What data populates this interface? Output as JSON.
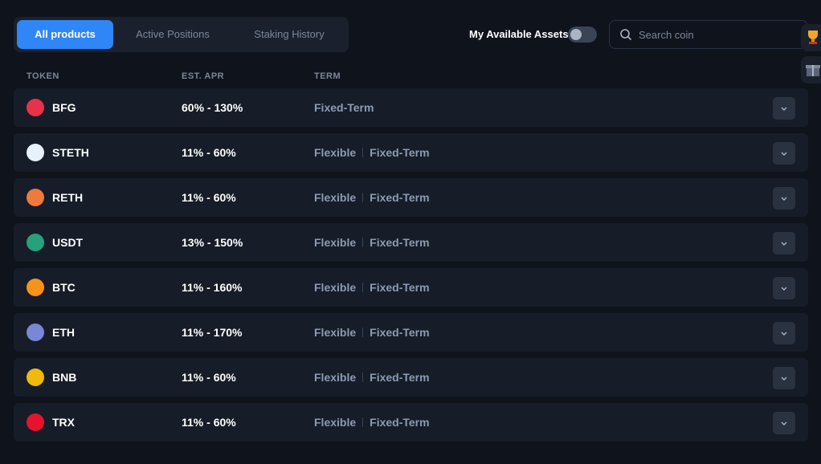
{
  "tabs": [
    "All products",
    "Active Positions",
    "Staking History"
  ],
  "toggle_label": "My Available Assets",
  "search_placeholder": "Search coin",
  "table": {
    "headers": [
      "TOKEN",
      "EST. APR",
      "TERM"
    ],
    "rows": [
      {
        "token": "BFG",
        "apr": "60% - 130%",
        "terms": [
          "Fixed-Term"
        ]
      },
      {
        "token": "STETH",
        "apr": "11% - 60%",
        "terms": [
          "Flexible",
          "Fixed-Term"
        ]
      },
      {
        "token": "RETH",
        "apr": "11% - 60%",
        "terms": [
          "Flexible",
          "Fixed-Term"
        ]
      },
      {
        "token": "USDT",
        "apr": "13% - 150%",
        "terms": [
          "Flexible",
          "Fixed-Term"
        ]
      },
      {
        "token": "BTC",
        "apr": "11% - 160%",
        "terms": [
          "Flexible",
          "Fixed-Term"
        ]
      },
      {
        "token": "ETH",
        "apr": "11% - 170%",
        "terms": [
          "Flexible",
          "Fixed-Term"
        ]
      },
      {
        "token": "BNB",
        "apr": "11% - 60%",
        "terms": [
          "Flexible",
          "Fixed-Term"
        ]
      },
      {
        "token": "TRX",
        "apr": "11% - 60%",
        "terms": [
          "Flexible",
          "Fixed-Term"
        ]
      }
    ]
  }
}
